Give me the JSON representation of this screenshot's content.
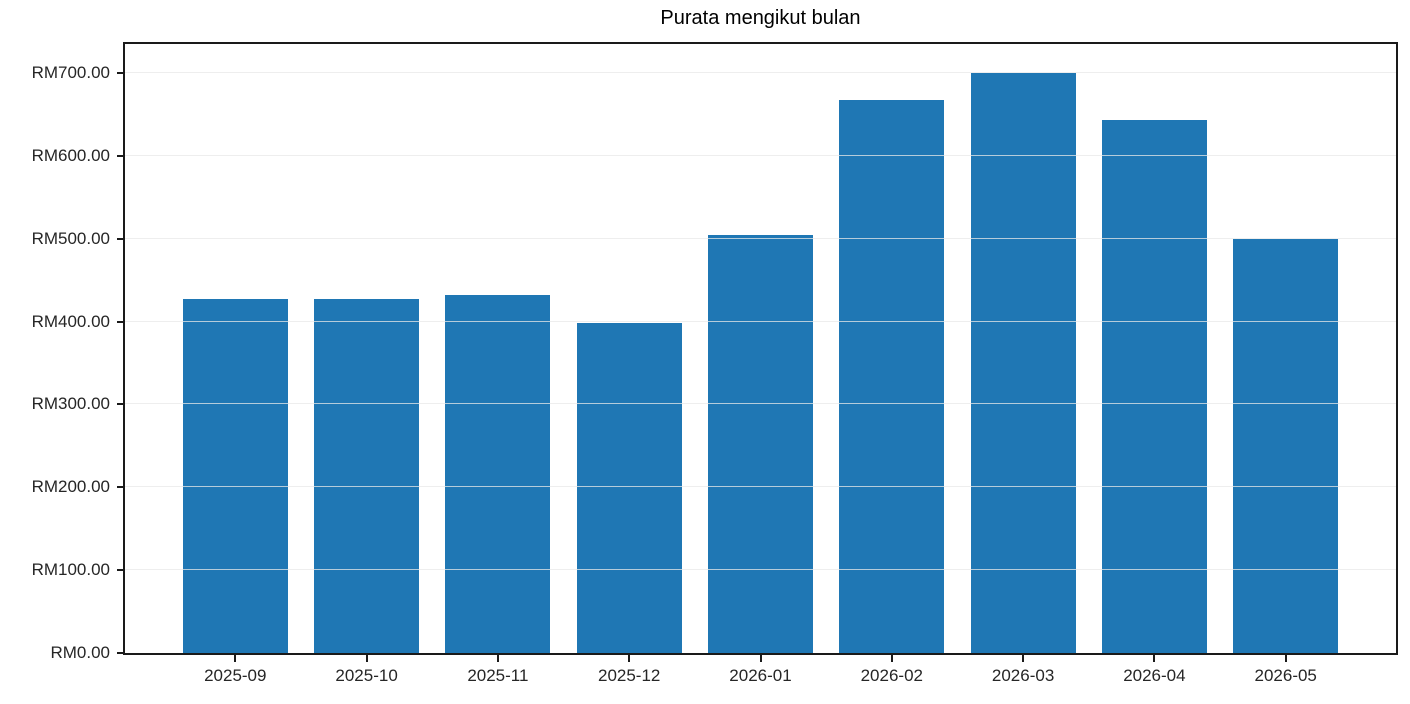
{
  "chart_data": {
    "type": "bar",
    "title": "Purata mengikut bulan",
    "categories": [
      "2025-09",
      "2025-10",
      "2025-11",
      "2025-12",
      "2026-01",
      "2026-02",
      "2026-03",
      "2026-04",
      "2026-05"
    ],
    "values": [
      427,
      427,
      432,
      398,
      505,
      668,
      700,
      643,
      500
    ],
    "y_ticks": [
      0,
      100,
      200,
      300,
      400,
      500,
      600,
      700
    ],
    "y_tick_labels": [
      "RM0.00",
      "RM100.00",
      "RM200.00",
      "RM300.00",
      "RM400.00",
      "RM500.00",
      "RM600.00",
      "RM700.00"
    ],
    "ylim": [
      0,
      735
    ],
    "xlabel": "",
    "ylabel": "",
    "legend": "none",
    "grid": "horizontal",
    "bar_color": "#1f77b4",
    "gridline_color": "#e8e8e8",
    "axis_color": "#1a1a1a",
    "currency_prefix": "RM"
  }
}
